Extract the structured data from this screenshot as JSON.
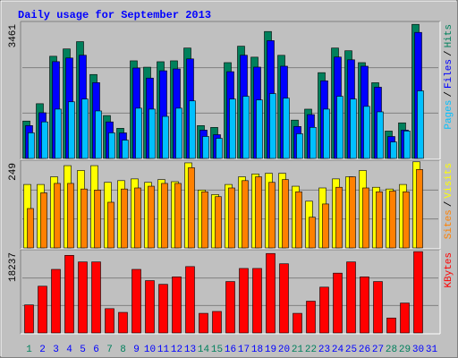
{
  "chart_data": {
    "type": "bar",
    "title": "Daily usage for September 2013",
    "categories": [
      "1",
      "2",
      "3",
      "4",
      "5",
      "6",
      "7",
      "8",
      "9",
      "10",
      "11",
      "12",
      "13",
      "14",
      "15",
      "16",
      "17",
      "18",
      "19",
      "20",
      "21",
      "22",
      "23",
      "24",
      "25",
      "26",
      "27",
      "28",
      "29",
      "30",
      "31"
    ],
    "category_colors": [
      "#00805c",
      "#0000ff",
      "#0000ff",
      "#0000ff",
      "#0000ff",
      "#0000ff",
      "#00805c",
      "#00805c",
      "#0000ff",
      "#0000ff",
      "#0000ff",
      "#0000ff",
      "#0000ff",
      "#00805c",
      "#00805c",
      "#0000ff",
      "#0000ff",
      "#0000ff",
      "#0000ff",
      "#0000ff",
      "#00805c",
      "#00805c",
      "#0000ff",
      "#0000ff",
      "#0000ff",
      "#0000ff",
      "#0000ff",
      "#00805c",
      "#00805c",
      "#0000ff",
      "#0000ff"
    ],
    "legend_separator": "/",
    "panels": [
      {
        "ylim": [
          0,
          3461
        ],
        "yticks": [
          3461
        ],
        "series": [
          {
            "name": "Hits",
            "color": "#00805c",
            "values": [
              951,
              1392,
              2599,
              2785,
              2971,
              2135,
              1091,
              766,
              2483,
              2321,
              2460,
              2483,
              2808,
              836,
              789,
              2437,
              2855,
              2576,
              3229,
              2623,
              975,
              1253,
              2182,
              2808,
              2739,
              2437,
              1926,
              696,
              905,
              3411,
              0
            ]
          },
          {
            "name": "Files",
            "color": "#0000ff",
            "values": [
              836,
              1162,
              2462,
              2555,
              2625,
              1928,
              929,
              650,
              2300,
              2044,
              2230,
              2277,
              2532,
              720,
              604,
              2207,
              2625,
              2323,
              2997,
              2346,
              813,
              1115,
              1975,
              2579,
              2509,
              2346,
              1812,
              558,
              720,
              3206,
              0
            ]
          },
          {
            "name": "Pages",
            "color": "#00c0ff",
            "values": [
              650,
              929,
              1254,
              1440,
              1510,
              1208,
              650,
              465,
              1278,
              1254,
              1069,
              1278,
              1463,
              558,
              511,
              1510,
              1580,
              1487,
              1649,
              1533,
              627,
              790,
              1254,
              1580,
              1510,
              1324,
              1185,
              418,
              697,
              1719,
              0
            ]
          }
        ]
      },
      {
        "ylim": [
          0,
          249
        ],
        "yticks": [
          249
        ],
        "series": [
          {
            "name": "Visits",
            "color": "#ffff00",
            "values": [
              182,
              182,
              204,
              236,
              222,
              236,
              188,
              193,
              198,
              188,
              196,
              190,
              244,
              166,
              153,
              182,
              204,
              212,
              214,
              214,
              177,
              134,
              172,
              198,
              204,
              222,
              174,
              169,
              182,
              247,
              0
            ]
          },
          {
            "name": "Sites",
            "color": "#ff8000",
            "values": [
              113,
              158,
              185,
              185,
              169,
              166,
              131,
              169,
              172,
              177,
              185,
              185,
              230,
              161,
              147,
              172,
              193,
              204,
              188,
              196,
              161,
              88,
              126,
              174,
              204,
              172,
              161,
              163,
              161,
              225,
              0
            ]
          }
        ]
      },
      {
        "ylim": [
          0,
          18237
        ],
        "yticks": [
          18237
        ],
        "series": [
          {
            "name": "KBytes",
            "color": "#ff0000",
            "values": [
              6210,
              10350,
              14076,
              17181,
              15732,
              15732,
              5382,
              4554,
              14076,
              11592,
              10764,
              12420,
              14697,
              4347,
              4761,
              11385,
              14283,
              14283,
              17595,
              15318,
              4347,
              7038,
              10143,
              13248,
              15732,
              12420,
              11385,
              3312,
              6624,
              18009,
              0
            ]
          }
        ]
      }
    ]
  }
}
